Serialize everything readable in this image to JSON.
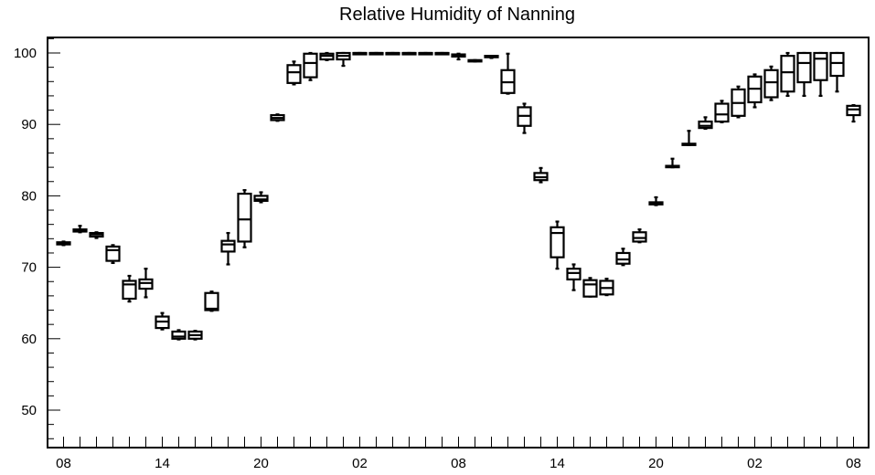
{
  "chart_data": {
    "type": "box",
    "title": "Relative Humidity of Nanning",
    "xlabel": "",
    "ylabel": "",
    "ylim": [
      45,
      102.5
    ],
    "xlim": [
      0,
      48
    ],
    "grid": false,
    "y_ticks": [
      50,
      60,
      70,
      80,
      90,
      100
    ],
    "x_ticks": [
      {
        "x": 1,
        "label": "08"
      },
      {
        "x": 7,
        "label": "14"
      },
      {
        "x": 13,
        "label": "20"
      },
      {
        "x": 19,
        "label": "02"
      },
      {
        "x": 25,
        "label": "08"
      },
      {
        "x": 31,
        "label": "14"
      },
      {
        "x": 37,
        "label": "20"
      },
      {
        "x": 43,
        "label": "02"
      },
      {
        "x": 49,
        "label": "08"
      }
    ],
    "boxes": [
      {
        "x": 1,
        "min": 73.1,
        "q1": 73.2,
        "median": 73.4,
        "q3": 73.5,
        "max": 73.6
      },
      {
        "x": 2,
        "min": 74.9,
        "q1": 75.0,
        "median": 75.2,
        "q3": 75.3,
        "max": 75.8
      },
      {
        "x": 3,
        "min": 74.1,
        "q1": 74.3,
        "median": 74.6,
        "q3": 74.8,
        "max": 74.9
      },
      {
        "x": 4,
        "min": 70.6,
        "q1": 70.9,
        "median": 72.4,
        "q3": 72.9,
        "max": 73.1
      },
      {
        "x": 5,
        "min": 65.2,
        "q1": 65.6,
        "median": 67.6,
        "q3": 68.1,
        "max": 68.8
      },
      {
        "x": 6,
        "min": 65.8,
        "q1": 67.0,
        "median": 67.8,
        "q3": 68.3,
        "max": 69.8
      },
      {
        "x": 7,
        "min": 61.3,
        "q1": 61.5,
        "median": 62.4,
        "q3": 63.1,
        "max": 63.6
      },
      {
        "x": 8,
        "min": 59.9,
        "q1": 60.0,
        "median": 60.3,
        "q3": 61.0,
        "max": 61.2
      },
      {
        "x": 9,
        "min": 59.9,
        "q1": 60.0,
        "median": 60.5,
        "q3": 61.0,
        "max": 61.1
      },
      {
        "x": 10,
        "min": 63.9,
        "q1": 64.0,
        "median": 64.2,
        "q3": 66.4,
        "max": 66.6
      },
      {
        "x": 11,
        "min": 70.4,
        "q1": 72.2,
        "median": 73.2,
        "q3": 73.7,
        "max": 74.8
      },
      {
        "x": 12,
        "min": 72.8,
        "q1": 73.6,
        "median": 76.7,
        "q3": 80.3,
        "max": 80.8
      },
      {
        "x": 13,
        "min": 79.1,
        "q1": 79.3,
        "median": 79.5,
        "q3": 80.0,
        "max": 80.5
      },
      {
        "x": 14,
        "min": 90.5,
        "q1": 90.6,
        "median": 90.9,
        "q3": 91.3,
        "max": 91.4
      },
      {
        "x": 15,
        "min": 95.6,
        "q1": 95.8,
        "median": 97.3,
        "q3": 98.3,
        "max": 98.8
      },
      {
        "x": 16,
        "min": 96.2,
        "q1": 96.6,
        "median": 98.6,
        "q3": 99.9,
        "max": 100.0
      },
      {
        "x": 17,
        "min": 99.0,
        "q1": 99.1,
        "median": 99.6,
        "q3": 99.9,
        "max": 100.0
      },
      {
        "x": 18,
        "min": 98.2,
        "q1": 99.1,
        "median": 99.6,
        "q3": 100.0,
        "max": 100.0
      },
      {
        "x": 19,
        "min": 99.9,
        "q1": 100.0,
        "median": 100.0,
        "q3": 100.0,
        "max": 100.0
      },
      {
        "x": 20,
        "min": 99.9,
        "q1": 100.0,
        "median": 100.0,
        "q3": 100.0,
        "max": 100.0
      },
      {
        "x": 21,
        "min": 99.9,
        "q1": 100.0,
        "median": 100.0,
        "q3": 100.0,
        "max": 100.0
      },
      {
        "x": 22,
        "min": 99.9,
        "q1": 100.0,
        "median": 100.0,
        "q3": 100.0,
        "max": 100.0
      },
      {
        "x": 23,
        "min": 99.9,
        "q1": 100.0,
        "median": 100.0,
        "q3": 100.0,
        "max": 100.0
      },
      {
        "x": 24,
        "min": 99.9,
        "q1": 100.0,
        "median": 100.0,
        "q3": 100.0,
        "max": 100.0
      },
      {
        "x": 25,
        "min": 99.1,
        "q1": 99.5,
        "median": 99.7,
        "q3": 99.8,
        "max": 99.9
      },
      {
        "x": 26,
        "min": 98.8,
        "q1": 98.9,
        "median": 98.9,
        "q3": 99.0,
        "max": 99.0
      },
      {
        "x": 27,
        "min": 99.3,
        "q1": 99.4,
        "median": 99.5,
        "q3": 99.6,
        "max": 99.6
      },
      {
        "x": 28,
        "min": 94.3,
        "q1": 94.4,
        "median": 95.9,
        "q3": 97.6,
        "max": 99.9
      },
      {
        "x": 29,
        "min": 88.8,
        "q1": 89.8,
        "median": 91.2,
        "q3": 92.4,
        "max": 92.9
      },
      {
        "x": 30,
        "min": 81.9,
        "q1": 82.2,
        "median": 82.6,
        "q3": 83.2,
        "max": 83.9
      },
      {
        "x": 31,
        "min": 69.8,
        "q1": 71.4,
        "median": 74.8,
        "q3": 75.6,
        "max": 76.4
      },
      {
        "x": 32,
        "min": 66.8,
        "q1": 68.3,
        "median": 69.2,
        "q3": 69.8,
        "max": 70.4
      },
      {
        "x": 33,
        "min": 65.9,
        "q1": 65.9,
        "median": 67.6,
        "q3": 68.2,
        "max": 68.5
      },
      {
        "x": 34,
        "min": 66.1,
        "q1": 66.2,
        "median": 67.1,
        "q3": 68.1,
        "max": 68.4
      },
      {
        "x": 35,
        "min": 70.3,
        "q1": 70.5,
        "median": 71.1,
        "q3": 72.0,
        "max": 72.6
      },
      {
        "x": 36,
        "min": 73.5,
        "q1": 73.6,
        "median": 74.1,
        "q3": 74.9,
        "max": 75.3
      },
      {
        "x": 37,
        "min": 78.7,
        "q1": 78.8,
        "median": 79.0,
        "q3": 79.1,
        "max": 79.8
      },
      {
        "x": 38,
        "min": 84.0,
        "q1": 84.0,
        "median": 84.1,
        "q3": 84.2,
        "max": 85.2
      },
      {
        "x": 39,
        "min": 87.1,
        "q1": 87.2,
        "median": 87.2,
        "q3": 87.3,
        "max": 89.1
      },
      {
        "x": 40,
        "min": 89.4,
        "q1": 89.5,
        "median": 89.8,
        "q3": 90.4,
        "max": 91.0
      },
      {
        "x": 41,
        "min": 90.3,
        "q1": 90.4,
        "median": 91.4,
        "q3": 92.9,
        "max": 93.3
      },
      {
        "x": 42,
        "min": 91.0,
        "q1": 91.2,
        "median": 93.0,
        "q3": 94.9,
        "max": 95.3
      },
      {
        "x": 43,
        "min": 92.4,
        "q1": 93.1,
        "median": 95.0,
        "q3": 96.7,
        "max": 97.0
      },
      {
        "x": 44,
        "min": 93.4,
        "q1": 93.8,
        "median": 95.9,
        "q3": 97.6,
        "max": 98.1
      },
      {
        "x": 45,
        "min": 94.0,
        "q1": 94.6,
        "median": 97.3,
        "q3": 99.6,
        "max": 100.0
      },
      {
        "x": 46,
        "min": 94.0,
        "q1": 95.9,
        "median": 98.6,
        "q3": 100.0,
        "max": 100.0
      },
      {
        "x": 47,
        "min": 94.0,
        "q1": 96.2,
        "median": 99.2,
        "q3": 100.0,
        "max": 100.0
      },
      {
        "x": 48,
        "min": 94.6,
        "q1": 96.8,
        "median": 98.6,
        "q3": 100.0,
        "max": 100.0
      },
      {
        "x": 49,
        "min": 90.4,
        "q1": 91.3,
        "median": 92.1,
        "q3": 92.6,
        "max": 92.7
      }
    ]
  }
}
